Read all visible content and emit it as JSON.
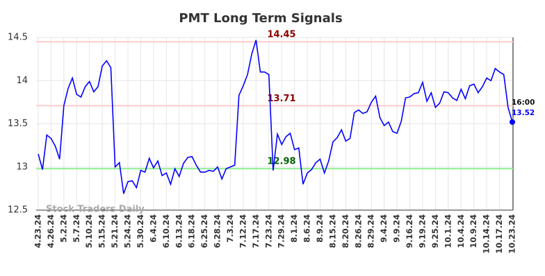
{
  "chart_data": {
    "type": "line",
    "title": "PMT Long Term Signals",
    "watermark": "Stock Traders Daily",
    "categories": [
      "4.23.24",
      null,
      null,
      "4.26.24",
      null,
      null,
      "5.2.24",
      null,
      null,
      "5.7.24",
      null,
      null,
      "5.10.24",
      null,
      null,
      "5.15.24",
      null,
      null,
      "5.21.24",
      null,
      null,
      "5.24.24",
      null,
      null,
      "5.30.24",
      null,
      null,
      "6.4.24",
      null,
      null,
      "6.10.24",
      null,
      null,
      "6.13.24",
      null,
      null,
      "6.18.24",
      null,
      null,
      "6.25.24",
      null,
      null,
      "6.28.24",
      null,
      null,
      "7.3.24",
      null,
      null,
      "7.12.24",
      null,
      null,
      "7.17.24",
      null,
      null,
      "7.23.24",
      null,
      null,
      "7.29.24",
      null,
      null,
      "8.1.24",
      null,
      null,
      "8.6.24",
      null,
      null,
      "8.9.24",
      null,
      null,
      "8.15.24",
      null,
      null,
      "8.20.24",
      null,
      null,
      "8.26.24",
      null,
      null,
      "8.29.24",
      null,
      null,
      "9.4.24",
      null,
      null,
      "9.9.24",
      null,
      null,
      "9.16.24",
      null,
      null,
      "9.19.24",
      null,
      null,
      "9.25.24",
      null,
      null,
      "10.1.24",
      null,
      null,
      "10.4.24",
      null,
      null,
      "10.9.24",
      null,
      null,
      "10.14.24",
      null,
      null,
      "10.17.24",
      null,
      null,
      "10.23.24"
    ],
    "values": [
      13.15,
      12.97,
      13.37,
      13.33,
      13.24,
      13.09,
      13.71,
      13.91,
      14.03,
      13.84,
      13.81,
      13.93,
      13.99,
      13.87,
      13.93,
      14.17,
      14.23,
      14.15,
      13.0,
      13.05,
      12.69,
      12.83,
      12.84,
      12.76,
      12.96,
      12.94,
      13.1,
      12.99,
      13.07,
      12.9,
      12.93,
      12.8,
      12.98,
      12.89,
      13.04,
      13.11,
      13.12,
      13.02,
      12.94,
      12.94,
      12.96,
      12.95,
      13.0,
      12.86,
      12.98,
      13.0,
      13.02,
      13.83,
      13.94,
      14.07,
      14.31,
      14.47,
      14.1,
      14.1,
      14.07,
      12.96,
      13.38,
      13.26,
      13.35,
      13.39,
      13.2,
      13.22,
      12.8,
      12.93,
      12.97,
      13.05,
      13.09,
      12.93,
      13.07,
      13.29,
      13.34,
      13.43,
      13.3,
      13.33,
      13.63,
      13.66,
      13.62,
      13.64,
      13.75,
      13.82,
      13.57,
      13.48,
      13.52,
      13.41,
      13.39,
      13.53,
      13.8,
      13.81,
      13.85,
      13.86,
      13.98,
      13.76,
      13.86,
      13.69,
      13.74,
      13.87,
      13.86,
      13.8,
      13.77,
      13.9,
      13.79,
      13.94,
      13.96,
      13.86,
      13.93,
      14.03,
      14.0,
      14.14,
      14.1,
      14.07,
      13.69,
      13.52
    ],
    "color": "#0000ff",
    "last_time": "16:00",
    "reference_lines": [
      {
        "value": 14.45,
        "color": "#ffcccc",
        "label_color": "#8b0000"
      },
      {
        "value": 13.71,
        "color": "#ffcccc",
        "label_color": "#8b0000"
      },
      {
        "value": 12.98,
        "color": "#90ee90",
        "label_color": "#006400"
      }
    ],
    "ylim": [
      12.5,
      14.5
    ],
    "yticks": [
      12.5,
      13,
      13.5,
      14,
      14.5
    ],
    "grid": true
  }
}
